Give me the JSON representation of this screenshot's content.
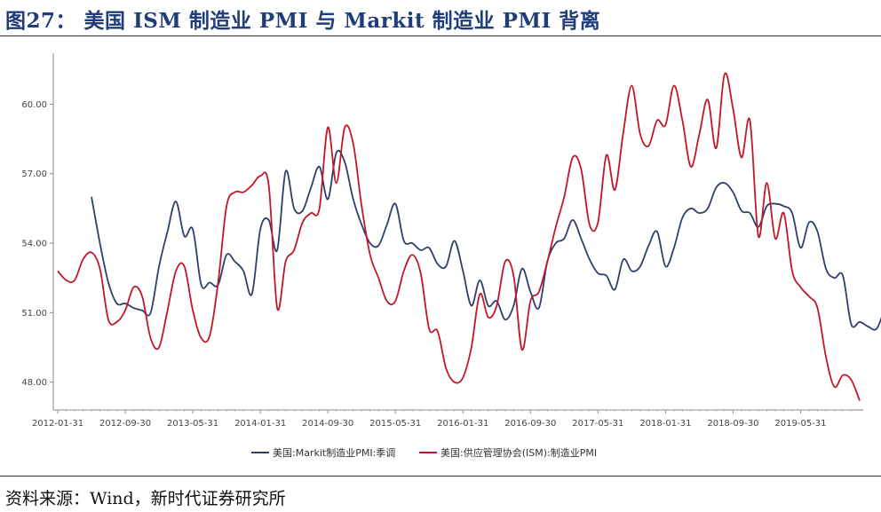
{
  "title": "图27： 美国 ISM 制造业 PMI 与 Markit 制造业 PMI 背离",
  "source": "资料来源：Wind，新时代证券研究所",
  "chart_data": {
    "type": "line",
    "title": "",
    "xlabel": "",
    "ylabel": "",
    "ylim": [
      46.8,
      62.2
    ],
    "yticks": [
      "48.00",
      "51.00",
      "54.00",
      "57.00",
      "60.00"
    ],
    "xticks": [
      "2012-01-31",
      "2012-09-30",
      "2013-05-31",
      "2014-01-31",
      "2014-09-30",
      "2015-05-31",
      "2016-01-31",
      "2016-09-30",
      "2017-05-31",
      "2018-01-31",
      "2018-09-30",
      "2019-05-31"
    ],
    "grid": false,
    "legend": "bottom",
    "series": [
      {
        "name": "美国:Markit制造业PMI:季调",
        "color": "#2e3f6e",
        "start": "2012-05",
        "values": [
          56.0,
          54.0,
          52.3,
          51.4,
          51.4,
          51.2,
          51.1,
          51.0,
          53.0,
          54.5,
          55.8,
          54.3,
          54.6,
          52.2,
          52.3,
          52.2,
          53.5,
          53.2,
          52.8,
          51.8,
          54.6,
          55.0,
          53.7,
          57.1,
          55.5,
          55.4,
          56.4,
          57.3,
          55.9,
          57.9,
          57.5,
          55.9,
          54.8,
          54.0,
          53.9,
          54.8,
          55.7,
          54.1,
          54.0,
          53.7,
          53.8,
          53.1,
          53.0,
          54.1,
          52.8,
          51.3,
          52.4,
          51.3,
          51.5,
          50.7,
          51.3,
          52.9,
          51.9,
          51.2,
          53.2,
          54.0,
          54.2,
          55.0,
          54.2,
          53.3,
          52.7,
          52.6,
          52.0,
          53.3,
          52.8,
          53.0,
          53.9,
          54.5,
          53.0,
          53.8,
          55.1,
          55.5,
          55.3,
          55.5,
          56.4,
          56.6,
          56.2,
          55.4,
          55.3,
          54.7,
          55.6,
          55.7,
          55.6,
          55.3,
          53.8,
          54.9,
          54.5,
          52.9,
          52.5,
          52.6,
          50.5,
          50.6,
          50.4,
          50.3,
          51.1,
          51.1,
          51.3,
          52.6,
          52.4
        ]
      },
      {
        "name": "美国:供应管理协会(ISM):制造业PMI",
        "color": "#c0172b",
        "start": "2012-01",
        "values": [
          52.8,
          52.4,
          52.4,
          53.3,
          53.6,
          52.9,
          50.7,
          50.6,
          51.1,
          52.1,
          51.7,
          49.9,
          49.5,
          51.1,
          52.8,
          53.0,
          51.1,
          49.9,
          50.0,
          52.3,
          55.6,
          56.2,
          56.2,
          56.5,
          56.9,
          56.5,
          51.2,
          53.2,
          53.7,
          54.9,
          55.3,
          55.5,
          59.0,
          56.6,
          59.0,
          58.3,
          55.6,
          53.5,
          52.5,
          51.5,
          51.5,
          52.8,
          53.5,
          52.7,
          50.3,
          50.2,
          48.6,
          48.0,
          48.2,
          49.5,
          51.8,
          50.8,
          51.3,
          53.2,
          52.6,
          49.4,
          51.5,
          51.9,
          53.2,
          54.7,
          56.0,
          57.7,
          57.2,
          54.8,
          54.9,
          57.8,
          56.3,
          58.8,
          60.8,
          58.7,
          58.2,
          59.3,
          59.1,
          60.8,
          59.3,
          57.3,
          58.7,
          60.2,
          58.1,
          61.3,
          59.8,
          57.7,
          59.3,
          54.3,
          56.6,
          54.2,
          55.3,
          52.8,
          52.1,
          51.7,
          51.2,
          49.1,
          47.8,
          48.3,
          48.1,
          47.2
        ]
      }
    ]
  }
}
